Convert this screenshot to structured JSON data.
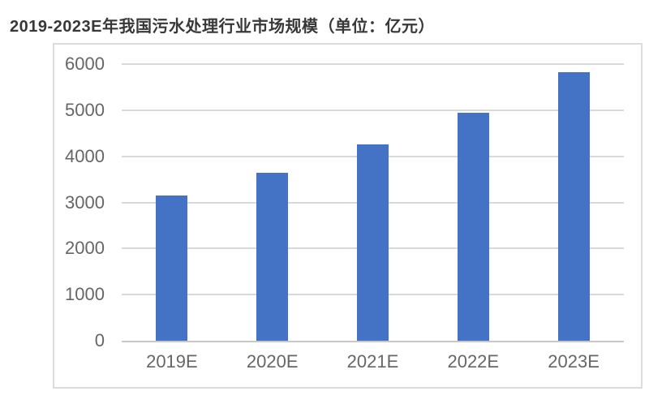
{
  "title": "2019-2023E年我国污水处理行业市场规模（单位：亿元）",
  "colors": {
    "bar": "#4472C4",
    "gridline": "#D9D9D9",
    "axis_line": "#C8C8C8",
    "tick_label": "#666666",
    "title": "#383838",
    "chart_border": "#DCDCDC",
    "background": "#FFFFFF"
  },
  "chart_data": {
    "type": "bar",
    "title": "2019-2023E年我国污水处理行业市场规模（单位：亿元）",
    "unit_label": "亿元",
    "categories": [
      "2019E",
      "2020E",
      "2021E",
      "2022E",
      "2023E"
    ],
    "values": [
      3150,
      3650,
      4250,
      4950,
      5820
    ],
    "xlabel": "",
    "ylabel": "",
    "ylim": [
      0,
      6000
    ],
    "yticks": [
      0,
      1000,
      2000,
      3000,
      4000,
      5000,
      6000
    ],
    "grid": true,
    "legend": false
  }
}
